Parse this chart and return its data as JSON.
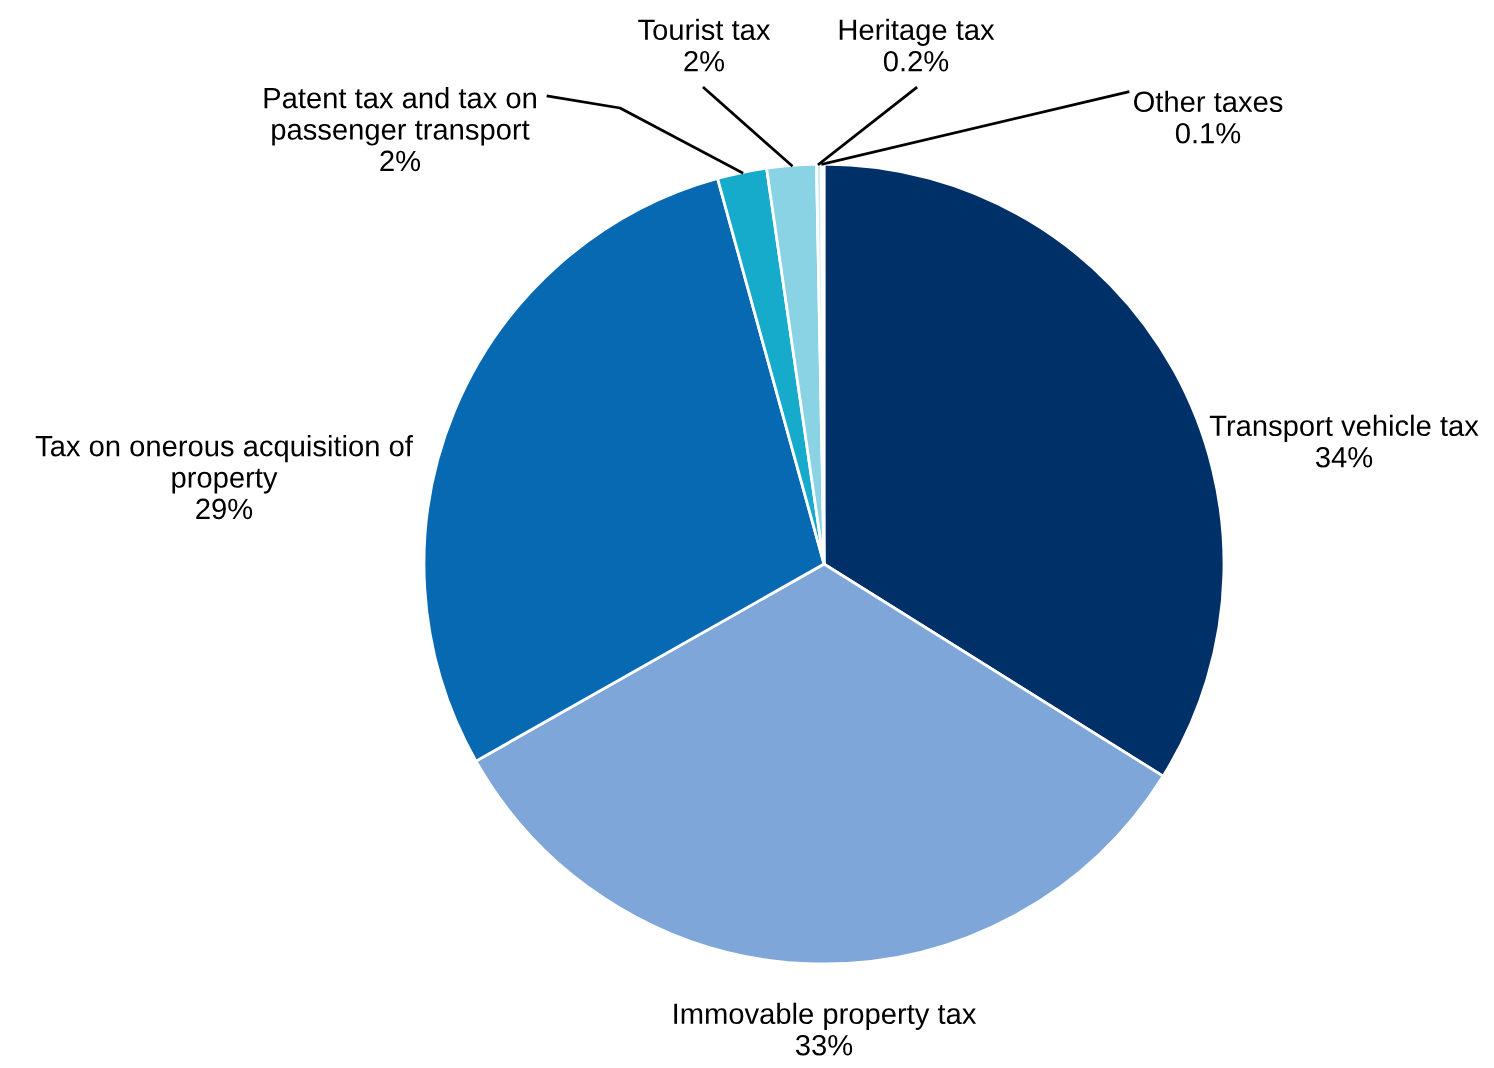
{
  "chart_data": {
    "type": "pie",
    "categories": [
      "Transport vehicle tax",
      "Immovable property tax",
      "Tax on onerous acquisition of property",
      "Patent tax and tax on passenger transport",
      "Tourist tax",
      "Heritage tax",
      "Other taxes"
    ],
    "values": [
      34,
      33,
      29,
      2,
      2,
      0.2,
      0.1
    ],
    "colors": [
      "#003068",
      "#7ea6d8",
      "#0869b3",
      "#16aacb",
      "#8ad3e4",
      "#c9ecf4",
      "#e0f3f8"
    ],
    "value_labels": [
      "34%",
      "33%",
      "29%",
      "2%",
      "2%",
      "0.2%",
      "0.1%"
    ]
  }
}
